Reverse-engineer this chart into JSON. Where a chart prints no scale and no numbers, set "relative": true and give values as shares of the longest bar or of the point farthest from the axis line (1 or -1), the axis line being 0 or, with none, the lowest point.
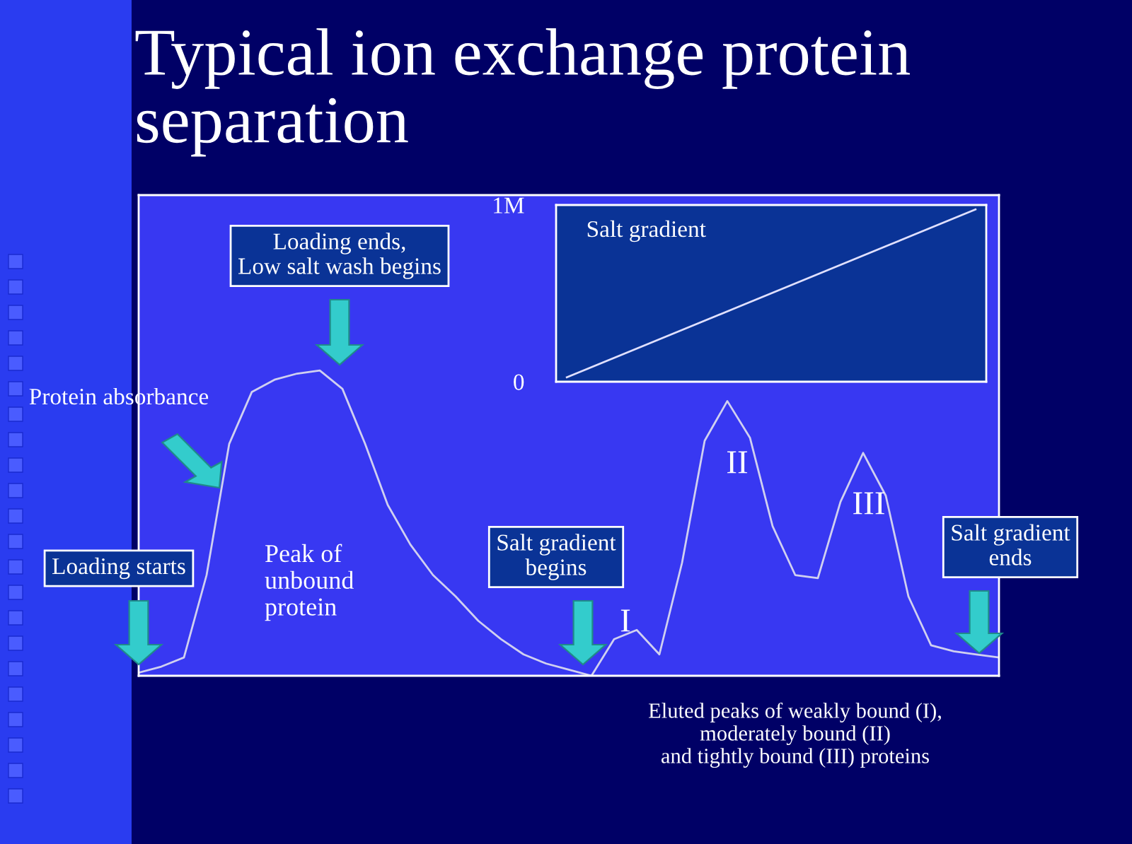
{
  "chart_data": [
    {
      "type": "line",
      "title": "Typical ion exchange protein\nseparation",
      "relative": true,
      "color": "#d0d0f0",
      "categories": [
        null,
        null,
        null,
        null,
        null,
        null,
        null,
        null,
        null,
        null,
        null,
        null,
        null,
        null,
        null,
        null,
        null,
        null,
        null,
        null,
        null,
        null,
        null,
        null,
        null,
        null,
        null,
        null,
        null,
        null,
        null,
        null,
        null,
        null,
        null,
        null,
        null,
        null,
        null
      ],
      "values": [
        0.01,
        0.03,
        0.06,
        0.33,
        0.76,
        0.93,
        0.97,
        0.99,
        1.0,
        0.94,
        0.76,
        0.56,
        0.43,
        0.33,
        0.26,
        0.18,
        0.12,
        0.07,
        0.04,
        0.02,
        0.0,
        0.12,
        0.15,
        0.07,
        0.37,
        0.77,
        0.9,
        0.78,
        0.49,
        0.33,
        0.32,
        0.57,
        0.73,
        0.59,
        0.26,
        0.1,
        0.08,
        0.07,
        0.06
      ],
      "annotations": [
        "Loading ends,\nLow salt wash begins",
        "Protein absorbance",
        "Loading starts",
        "Peak of\nunbound\nprotein",
        "Salt gradient\nbegins",
        "I",
        "II",
        "III",
        "Salt gradient\nends",
        "Eluted peaks of weakly bound (I),\nmoderately bound (II)\nand tightly bound (III) proteins"
      ]
    },
    {
      "type": "line",
      "title": "Salt gradient",
      "color": "#e0e0ff",
      "categories": [
        null,
        null,
        null,
        null,
        null,
        null,
        null,
        null,
        null,
        null,
        null,
        null,
        null,
        null,
        null,
        null,
        null,
        null,
        null,
        null
      ],
      "values": [
        0.025,
        0.075,
        0.125,
        0.175,
        0.225,
        0.275,
        0.325,
        0.375,
        0.425,
        0.475,
        0.525,
        0.575,
        0.625,
        0.675,
        0.725,
        0.775,
        0.825,
        0.875,
        0.925,
        0.975
      ],
      "ylim": [
        0,
        1
      ],
      "yticks": [
        {
          "value": 0,
          "label": "0"
        },
        {
          "value": 1,
          "label": "1M"
        }
      ]
    }
  ]
}
